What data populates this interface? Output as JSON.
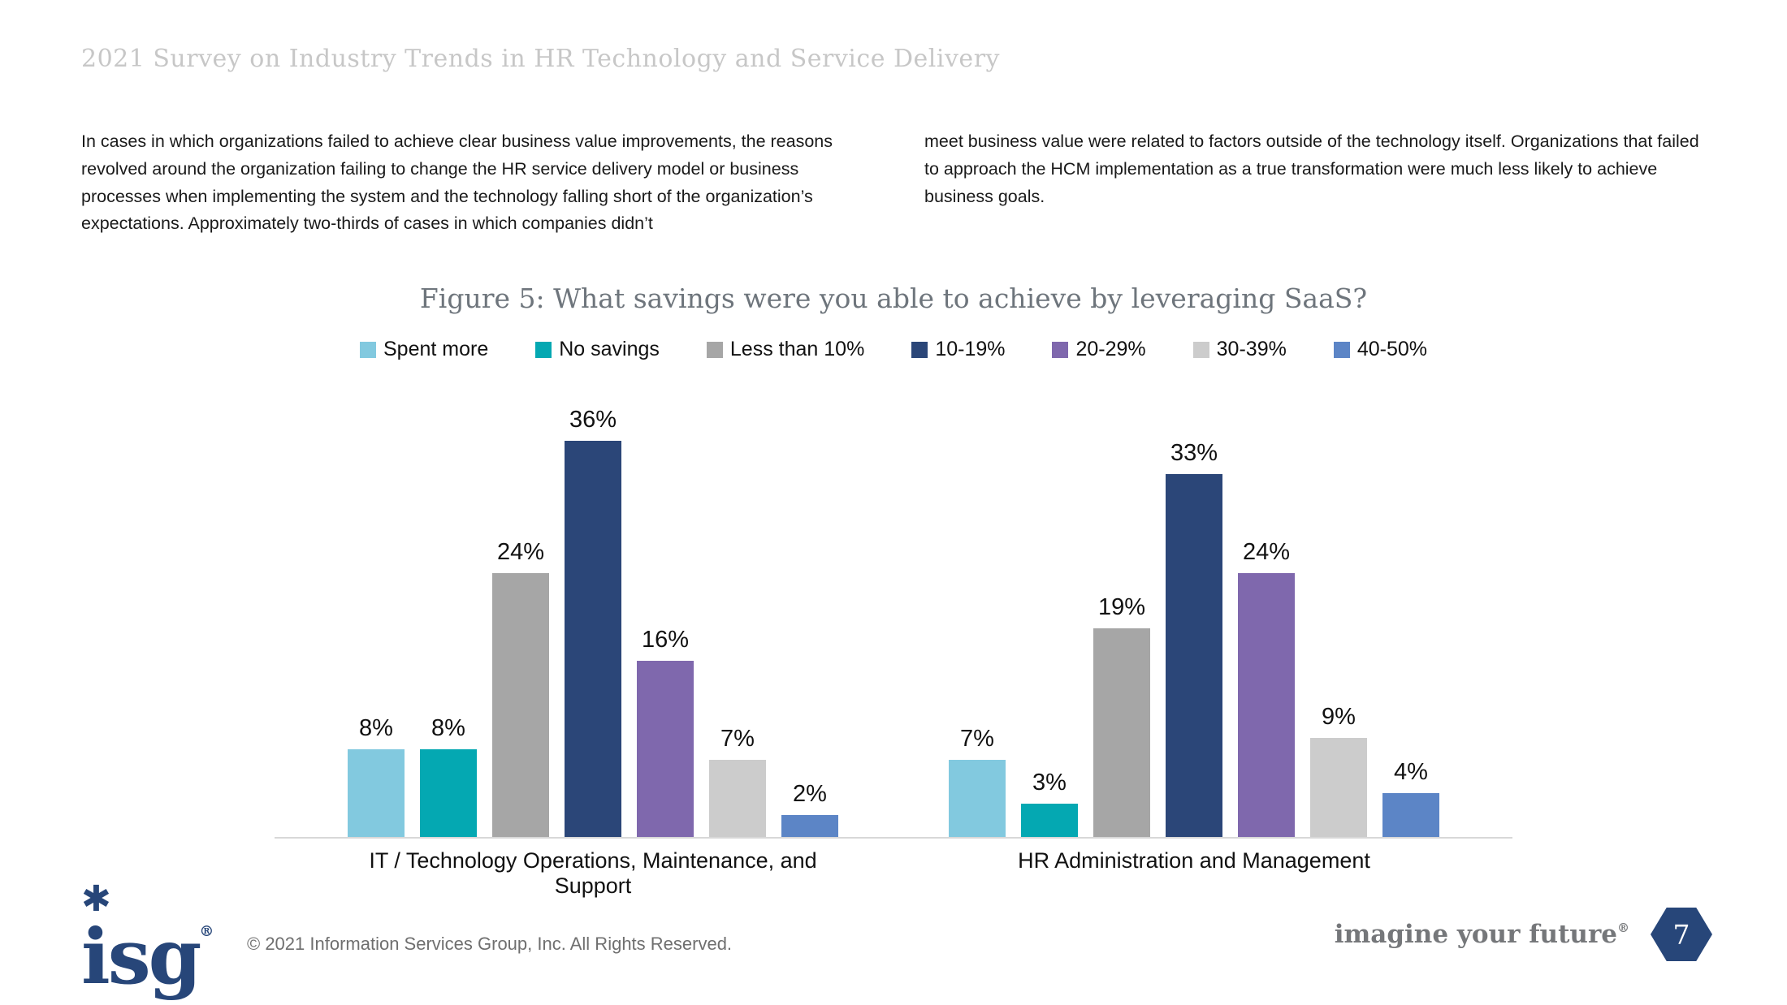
{
  "header": {
    "title": "2021 Survey on Industry Trends in HR Technology and Service Delivery"
  },
  "intro": {
    "left_paragraph": "In cases in which organizations failed to achieve clear business value improvements, the reasons revolved around the organization failing to change the HR service delivery model or business processes when implementing the system and the technology falling short of the organization’s expectations. Approximately two-thirds of cases in which companies didn’t",
    "right_paragraph": "meet business value were related to factors outside of the technology itself. Organizations that failed to approach the HCM implementation as a true transformation were much less likely to achieve business goals."
  },
  "chart_data": {
    "type": "bar",
    "title": "Figure 5: What savings were you able to achieve by leveraging SaaS?",
    "categories": [
      "IT / Technology Operations, Maintenance, and Support",
      "HR Administration and Management"
    ],
    "series": [
      {
        "name": "Spent more",
        "color": "#82C9DF",
        "values": [
          8,
          7
        ]
      },
      {
        "name": "No savings",
        "color": "#04A8B2",
        "values": [
          8,
          3
        ]
      },
      {
        "name": "Less than 10%",
        "color": "#A6A6A6",
        "values": [
          24,
          19
        ]
      },
      {
        "name": "10-19%",
        "color": "#2B4678",
        "values": [
          36,
          33
        ]
      },
      {
        "name": "20-29%",
        "color": "#7F68AD",
        "values": [
          16,
          24
        ]
      },
      {
        "name": "30-39%",
        "color": "#CCCCCC",
        "values": [
          7,
          9
        ]
      },
      {
        "name": "40-50%",
        "color": "#5C85C6",
        "values": [
          2,
          4
        ]
      }
    ],
    "value_suffix": "%",
    "ylim": [
      0,
      40
    ],
    "grid": false,
    "legend_position": "top",
    "baseline_color": "#D8D8D8"
  },
  "footer": {
    "logo_text": "isg",
    "logo_registered": "®",
    "logo_star": "✱",
    "copyright": "© 2021 Information Services Group, Inc. All Rights Reserved.",
    "tagline": "imagine your future",
    "tagline_registered": "®",
    "page_number": "7"
  }
}
